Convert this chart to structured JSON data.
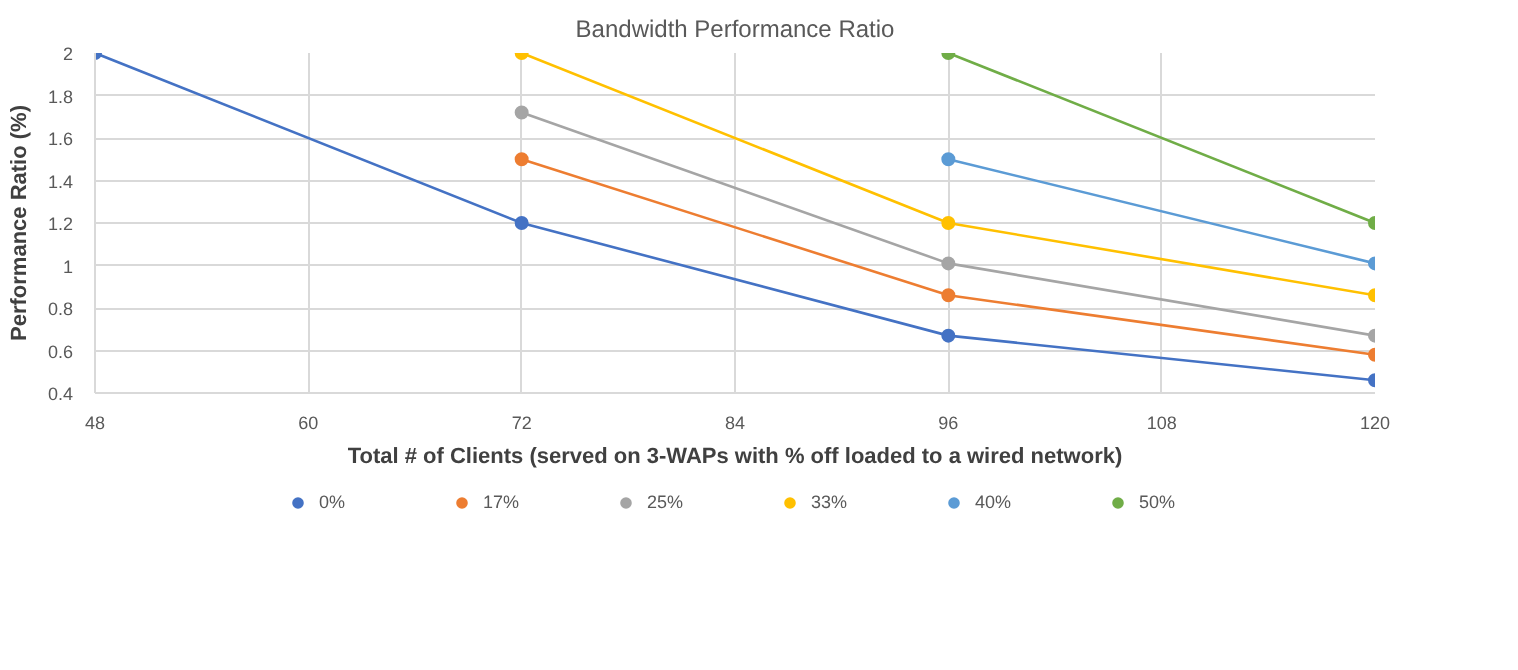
{
  "chart_data": {
    "type": "line",
    "title": "Bandwidth Performance Ratio",
    "xlabel": "Total # of Clients (served on 3-WAPs with % off loaded to a wired network)",
    "ylabel": "Performance Ratio (%)",
    "xlim": [
      48,
      120
    ],
    "xticks": [
      48,
      60,
      72,
      84,
      96,
      108,
      120
    ],
    "ylim": [
      0.4,
      2
    ],
    "yticks": [
      0.4,
      0.6,
      0.8,
      1,
      1.2,
      1.4,
      1.6,
      1.8,
      2
    ],
    "grid": true,
    "legend": "bottom",
    "marker": "circle",
    "series": [
      {
        "name": "0%",
        "color": "#4472c4",
        "x": [
          48,
          72,
          96,
          120
        ],
        "values": [
          2,
          1.2,
          0.67,
          0.46
        ]
      },
      {
        "name": "17%",
        "color": "#ed7d31",
        "x": [
          72,
          96,
          120
        ],
        "values": [
          1.5,
          0.86,
          0.58
        ]
      },
      {
        "name": "25%",
        "color": "#a5a5a5",
        "x": [
          72,
          96,
          120
        ],
        "values": [
          1.72,
          1.01,
          0.67
        ]
      },
      {
        "name": "33%",
        "color": "#ffc000",
        "x": [
          72,
          96,
          120
        ],
        "values": [
          2,
          1.2,
          0.86
        ]
      },
      {
        "name": "40%",
        "color": "#5b9bd5",
        "x": [
          96,
          120
        ],
        "values": [
          1.5,
          1.01
        ]
      },
      {
        "name": "50%",
        "color": "#70ad47",
        "x": [
          96,
          120
        ],
        "values": [
          2,
          1.2
        ]
      }
    ]
  }
}
